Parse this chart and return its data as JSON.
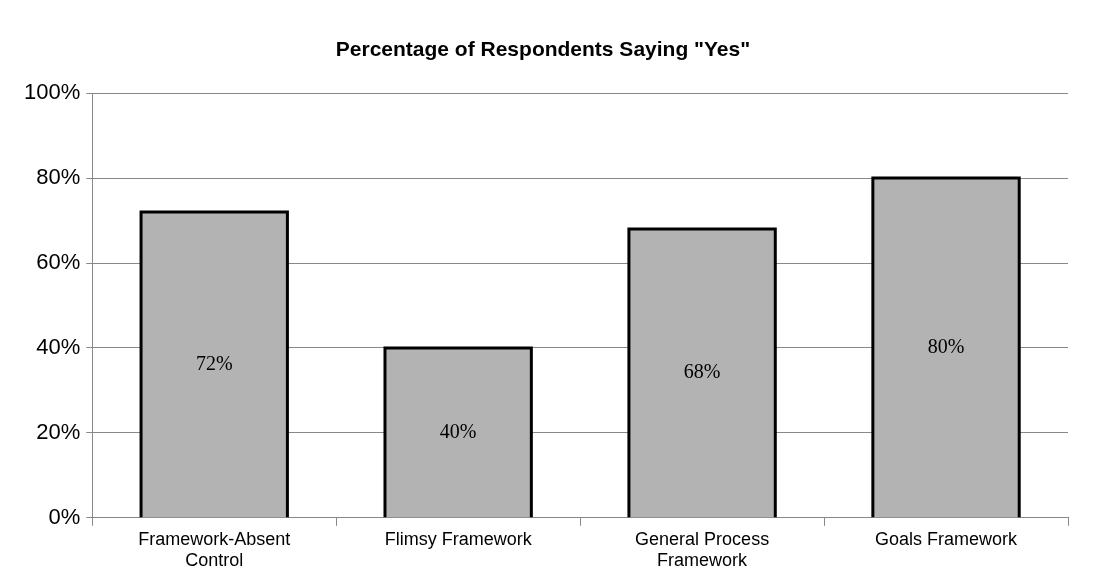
{
  "chart_data": {
    "type": "bar",
    "title": "Percentage of Respondents Saying \"Yes\"",
    "categories": [
      "Framework-Absent Control",
      "Flimsy Framework",
      "General Process Framework",
      "Goals Framework"
    ],
    "values": [
      72,
      40,
      68,
      80
    ],
    "value_labels": [
      "72%",
      "40%",
      "68%",
      "80%"
    ],
    "color": "#b3b3b3",
    "ylim": [
      0,
      100
    ],
    "yticks": [
      {
        "value": 0,
        "label": "0%"
      },
      {
        "value": 20,
        "label": "20%"
      },
      {
        "value": 40,
        "label": "40%"
      },
      {
        "value": 60,
        "label": "60%"
      },
      {
        "value": 80,
        "label": "80%"
      },
      {
        "value": 100,
        "label": "100%"
      }
    ],
    "grid": "y",
    "legend": false
  }
}
